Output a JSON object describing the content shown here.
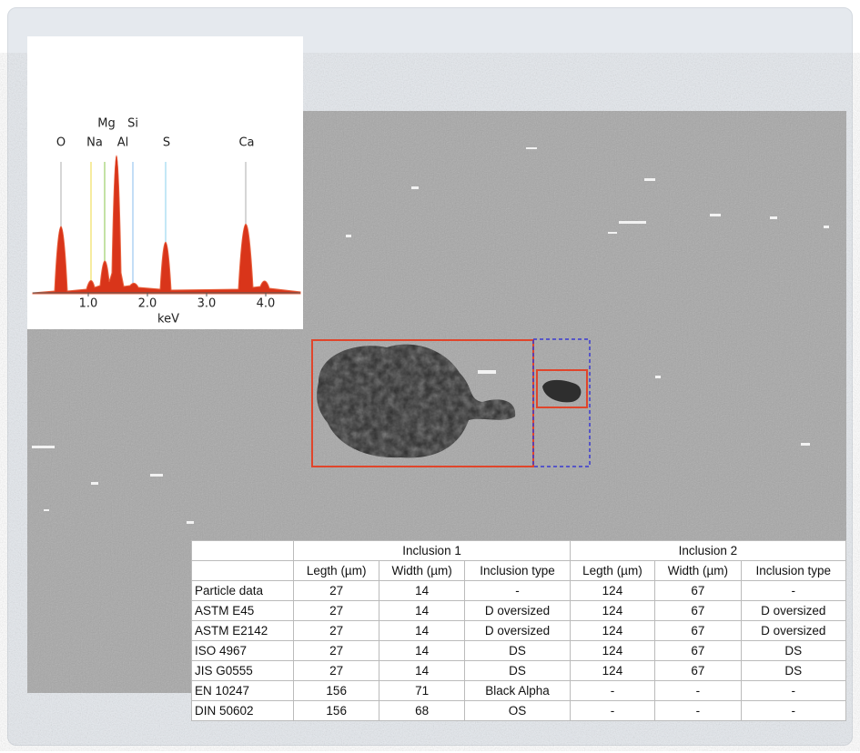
{
  "spectrum": {
    "element_labels": [
      "O",
      "Na",
      "Mg",
      "Si",
      "Al",
      "S",
      "Ca"
    ],
    "xlabel": "keV",
    "xlim": [
      0,
      4.6
    ],
    "xticks": [
      {
        "value": 1,
        "label": "1.0"
      },
      {
        "value": 2,
        "label": "2.0"
      },
      {
        "value": 3,
        "label": "3.0"
      },
      {
        "value": 4,
        "label": "4.0"
      }
    ]
  },
  "table": {
    "column_groups": [
      "Inclusion 1",
      "Inclusion 2"
    ],
    "columns": [
      "Legth (µm)",
      "Width (µm)",
      "Inclusion type",
      "Legth (µm)",
      "Width (µm)",
      "Inclusion type"
    ],
    "rows": [
      [
        "Particle data",
        27,
        14,
        "-",
        124,
        67,
        "-"
      ],
      [
        "ASTM E45",
        27,
        14,
        "D oversized",
        124,
        67,
        "D oversized"
      ],
      [
        "ASTM E2142",
        27,
        14,
        "D oversized",
        124,
        67,
        "D oversized"
      ],
      [
        "ISO 4967",
        27,
        14,
        "DS",
        124,
        67,
        "DS"
      ],
      [
        "JIS G0555",
        27,
        14,
        "DS",
        124,
        67,
        "DS"
      ],
      [
        "EN 10247",
        156,
        71,
        "Black Alpha",
        "-",
        "-",
        "-"
      ],
      [
        "DIN 50602",
        156,
        68,
        "OS",
        "-",
        "-",
        "-"
      ]
    ]
  }
}
